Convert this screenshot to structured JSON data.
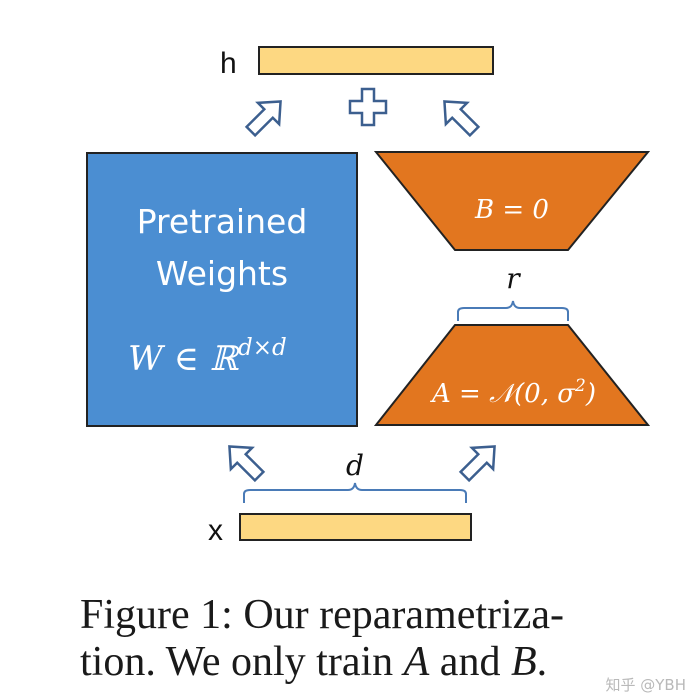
{
  "labels": {
    "h": "h",
    "x": "x",
    "plus": "+",
    "d": "d",
    "r": "r"
  },
  "pretrained": {
    "line1": "Pretrained",
    "line2": "Weights",
    "formula": "W ∈ ℝ",
    "formula_sup": "d×d"
  },
  "matrix_b": {
    "label": "B = 0"
  },
  "matrix_a": {
    "label": "A = 𝒩(0, σ",
    "label_sup": "2",
    "label_end": ")"
  },
  "caption": {
    "line1": "Figure 1: Our reparametriza-",
    "line2_pre": "tion. We only train ",
    "var_a": "A",
    "line2_mid": " and ",
    "var_b": "B",
    "line2_post": "."
  },
  "watermark": "知乎 @YBH",
  "colors": {
    "pretrained_fill": "#4b8ed2",
    "matrix_fill": "#e2761f",
    "bar_fill": "#fdd882",
    "stroke": "#222222",
    "arrow_stroke": "#3c5f8f",
    "brace": "#4a7bb7"
  }
}
